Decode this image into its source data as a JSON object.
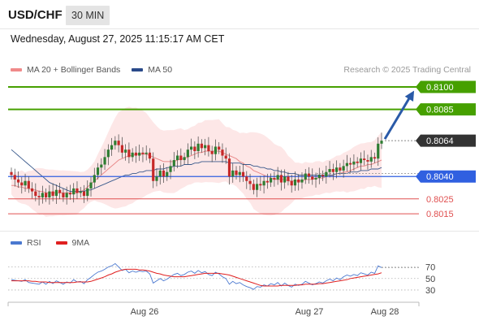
{
  "header": {
    "symbol": "USD/CHF",
    "timeframe": "30 MIN",
    "datetime": "Wednesday, August 27, 2025 11:15:17 AM CET"
  },
  "legend": {
    "ma20_label": "MA 20 + Bollinger Bands",
    "ma50_label": "MA 50",
    "credit": "Research © 2025 Trading Central"
  },
  "rsi_legend": {
    "rsi_label": "RSI",
    "ma_label": "9MA"
  },
  "colors": {
    "bull": "#2e7d32",
    "bear": "#c62828",
    "resistance": "#46a000",
    "pivot": "#3060e0",
    "support": "#e05050",
    "current": "#333333",
    "arrow": "#2a5aa8",
    "band_fill": "#fde3e3",
    "ma20": "#e88a8a",
    "ma50": "#3a5a8c",
    "rsi": "#4a78d0",
    "rsi_ma": "#e02020"
  },
  "levels": {
    "r2": "0.8100",
    "r1": "0.8085",
    "current": "0.8064",
    "pivot": "0.8040",
    "s1": "0.8025",
    "s2": "0.8015"
  },
  "x_axis": {
    "labels": [
      "Aug 26",
      "Aug 27",
      "Aug 28"
    ]
  },
  "rsi_axis": {
    "labels": [
      "70",
      "50",
      "30"
    ]
  },
  "chart_data": {
    "type": "candlestick",
    "price_series": {
      "close": [
        0.8041,
        0.8038,
        0.8036,
        0.8034,
        0.8037,
        0.8032,
        0.803,
        0.8027,
        0.8026,
        0.8029,
        0.8026,
        0.803,
        0.8027,
        0.8031,
        0.8029,
        0.8026,
        0.8029,
        0.8028,
        0.8032,
        0.8029,
        0.803,
        0.8027,
        0.8032,
        0.8036,
        0.8041,
        0.8046,
        0.8048,
        0.8053,
        0.8058,
        0.8061,
        0.8064,
        0.8061,
        0.8056,
        0.8058,
        0.8053,
        0.8056,
        0.8054,
        0.8056,
        0.8055,
        0.8056,
        0.8052,
        0.8037,
        0.804,
        0.8044,
        0.804,
        0.8043,
        0.8047,
        0.8051,
        0.8054,
        0.8051,
        0.8053,
        0.8058,
        0.806,
        0.8057,
        0.8062,
        0.8059,
        0.8061,
        0.8057,
        0.8055,
        0.806,
        0.8058,
        0.8054,
        0.8052,
        0.804,
        0.8044,
        0.8041,
        0.8043,
        0.804,
        0.8037,
        0.8035,
        0.8031,
        0.8035,
        0.8034,
        0.8037,
        0.8036,
        0.8039,
        0.8038,
        0.8041,
        0.8036,
        0.804,
        0.8037,
        0.8034,
        0.8038,
        0.8036,
        0.8038,
        0.8042,
        0.804,
        0.8038,
        0.8039,
        0.8041,
        0.804,
        0.8043,
        0.8045,
        0.8043,
        0.8046,
        0.8044,
        0.8047,
        0.8049,
        0.8048,
        0.805,
        0.8049,
        0.8052,
        0.8051,
        0.805,
        0.8053,
        0.8052,
        0.8062,
        0.8064
      ],
      "ma20": [
        0.8034,
        0.8034,
        0.8033,
        0.8033,
        0.8032,
        0.8032,
        0.8031,
        0.8031,
        0.803,
        0.803,
        0.8029,
        0.8029,
        0.8029,
        0.8029,
        0.8029,
        0.8029,
        0.8029,
        0.8029,
        0.8029,
        0.8029,
        0.803,
        0.8031,
        0.8033,
        0.8035,
        0.8037,
        0.8039,
        0.8041,
        0.8043,
        0.8045,
        0.8047,
        0.8049,
        0.8051,
        0.8052,
        0.8053,
        0.8054,
        0.8054,
        0.8055,
        0.8055,
        0.8055,
        0.8055,
        0.8054,
        0.8053,
        0.8052,
        0.8051,
        0.805,
        0.805,
        0.805,
        0.805,
        0.8051,
        0.8052,
        0.8052,
        0.8053,
        0.8054,
        0.8055,
        0.8056,
        0.8056,
        0.8057,
        0.8057,
        0.8057,
        0.8057,
        0.8057,
        0.8056,
        0.8055,
        0.8054,
        0.8053,
        0.8052,
        0.805,
        0.8049,
        0.8047,
        0.8046,
        0.8044,
        0.8043,
        0.8042,
        0.8041,
        0.804,
        0.8039,
        0.8038,
        0.8038,
        0.8038,
        0.8038,
        0.8037,
        0.8037,
        0.8037,
        0.8037,
        0.8037,
        0.8038,
        0.8038,
        0.8038,
        0.8039,
        0.8039,
        0.8039,
        0.804,
        0.804,
        0.8041,
        0.8042,
        0.8042,
        0.8043,
        0.8043,
        0.8044,
        0.8045,
        0.8046,
        0.8047,
        0.8047,
        0.8048,
        0.8048,
        0.8049,
        0.805,
        0.8051
      ],
      "ma50": [
        0.8058,
        0.8056,
        0.8054,
        0.8052,
        0.805,
        0.8048,
        0.8046,
        0.8044,
        0.8042,
        0.804,
        0.8038,
        0.8036,
        0.8035,
        0.8034,
        0.8033,
        0.8032,
        0.8031,
        0.803,
        0.803,
        0.803,
        0.803,
        0.803,
        0.8031,
        0.8031,
        0.8032,
        0.8033,
        0.8034,
        0.8035,
        0.8036,
        0.8037,
        0.8038,
        0.8039,
        0.804,
        0.8041,
        0.8041,
        0.8042,
        0.8042,
        0.8043,
        0.8043,
        0.8044,
        0.8044,
        0.8044,
        0.8045,
        0.8045,
        0.8045,
        0.8046,
        0.8046,
        0.8047,
        0.8047,
        0.8047,
        0.8048,
        0.8048,
        0.8048,
        0.8049,
        0.8049,
        0.805,
        0.805,
        0.805,
        0.805,
        0.805,
        0.805,
        0.805,
        0.805,
        0.8049,
        0.8049,
        0.8049,
        0.8049,
        0.8048,
        0.8048,
        0.8048,
        0.8047,
        0.8047,
        0.8046,
        0.8046,
        0.8045,
        0.8045,
        0.8044,
        0.8044,
        0.8043,
        0.8043,
        0.8042,
        0.8042,
        0.8042,
        0.8041,
        0.8041,
        0.8041,
        0.8041,
        0.8041,
        0.8041,
        0.8041,
        0.8041,
        0.8041,
        0.8041,
        0.8041,
        0.8042,
        0.8042,
        0.8042,
        0.8042,
        0.8043,
        0.8043,
        0.8043,
        0.8044,
        0.8044,
        0.8044,
        0.8045,
        0.8045,
        0.8045,
        0.8046
      ]
    },
    "rsi_series": {
      "rsi": [
        48,
        47,
        46,
        45,
        48,
        43,
        42,
        41,
        40,
        44,
        40,
        45,
        41,
        46,
        43,
        40,
        44,
        42,
        48,
        44,
        45,
        41,
        48,
        52,
        57,
        61,
        63,
        66,
        70,
        72,
        76,
        70,
        64,
        66,
        60,
        63,
        61,
        63,
        62,
        63,
        58,
        42,
        46,
        50,
        46,
        49,
        53,
        57,
        59,
        55,
        57,
        61,
        63,
        59,
        64,
        60,
        62,
        57,
        55,
        61,
        58,
        53,
        50,
        40,
        45,
        41,
        43,
        39,
        36,
        34,
        31,
        36,
        35,
        39,
        37,
        41,
        39,
        43,
        37,
        42,
        38,
        35,
        40,
        38,
        40,
        45,
        42,
        39,
        41,
        44,
        42,
        46,
        49,
        46,
        51,
        48,
        53,
        56,
        54,
        57,
        55,
        60,
        58,
        56,
        61,
        59,
        72,
        69
      ],
      "ma9": [
        46,
        46,
        46,
        46,
        46,
        46,
        45,
        45,
        44,
        44,
        44,
        43,
        43,
        43,
        43,
        43,
        43,
        43,
        43,
        44,
        44,
        44,
        44,
        45,
        47,
        49,
        51,
        53,
        56,
        58,
        61,
        63,
        65,
        66,
        66,
        66,
        66,
        65,
        65,
        64,
        63,
        61,
        59,
        58,
        56,
        55,
        54,
        53,
        53,
        53,
        53,
        54,
        55,
        56,
        57,
        58,
        59,
        59,
        59,
        59,
        59,
        58,
        57,
        56,
        54,
        52,
        50,
        48,
        46,
        44,
        42,
        40,
        38,
        37,
        37,
        37,
        37,
        37,
        38,
        38,
        38,
        38,
        38,
        39,
        39,
        40,
        40,
        40,
        40,
        41,
        41,
        42,
        43,
        44,
        45,
        46,
        47,
        48,
        50,
        51,
        52,
        53,
        54,
        55,
        56,
        57,
        58,
        60
      ]
    },
    "rsi_ylim": [
      20,
      85
    ]
  }
}
